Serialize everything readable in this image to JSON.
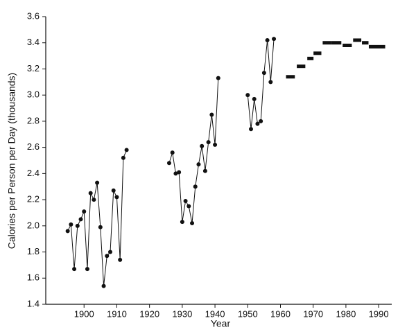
{
  "chart_data": {
    "type": "line",
    "x_label": "Year",
    "y_label": "Calories per Person per Day (thousands)",
    "xlim": [
      1888.3,
      1994
    ],
    "xticks": [
      1900,
      1910,
      1920,
      1930,
      1940,
      1950,
      1960,
      1970,
      1980,
      1990
    ],
    "ylim": [
      1.4,
      3.6
    ],
    "yticks": [
      1.4,
      1.6,
      1.8,
      {
        "value": 2,
        "label": "2.0"
      },
      2.2,
      2.4,
      2.6,
      2.8,
      {
        "value": 3,
        "label": "3.0"
      },
      3.2,
      3.4,
      3.6
    ],
    "color": "#111111",
    "series": [
      {
        "x": [
          1895,
          1896,
          1897,
          1898,
          1899,
          1900,
          1901,
          1902,
          1903,
          1904,
          1905,
          1906,
          1907,
          1908,
          1909,
          1910,
          1911,
          1912,
          1913
        ],
        "values": [
          1.96,
          2.01,
          1.67,
          2.0,
          2.05,
          2.11,
          1.67,
          2.25,
          2.2,
          2.33,
          1.99,
          1.54,
          1.77,
          1.8,
          2.27,
          2.22,
          1.74,
          2.52,
          2.58
        ]
      },
      {
        "x": [
          1926,
          1927,
          1928,
          1929,
          1930,
          1931,
          1932,
          1933,
          1934,
          1935,
          1936,
          1937,
          1938,
          1939,
          1940,
          1941
        ],
        "values": [
          2.48,
          2.56,
          2.4,
          2.41,
          2.03,
          2.19,
          2.15,
          2.02,
          2.3,
          2.47,
          2.61,
          2.42,
          2.64,
          2.85,
          2.62,
          3.13
        ]
      },
      {
        "x": [
          1950,
          1951,
          1952,
          1953,
          1954,
          1955,
          1956,
          1957,
          1958
        ],
        "values": [
          3.0,
          2.74,
          2.97,
          2.78,
          2.8,
          3.17,
          3.42,
          3.1,
          3.43
        ]
      }
    ],
    "averages": {
      "x_start": [
        1961.7,
        1965,
        1968.2,
        1970.1,
        1972.9,
        1975.4,
        1979,
        1982.2,
        1984.9,
        1987
      ],
      "x_end": [
        1964.4,
        1967.6,
        1970.1,
        1972.5,
        1975.4,
        1978.6,
        1981.8,
        1984.7,
        1986.9,
        1992
      ],
      "values": [
        3.14,
        3.22,
        3.28,
        3.32,
        3.4,
        3.4,
        3.38,
        3.42,
        3.4,
        3.37
      ]
    }
  }
}
